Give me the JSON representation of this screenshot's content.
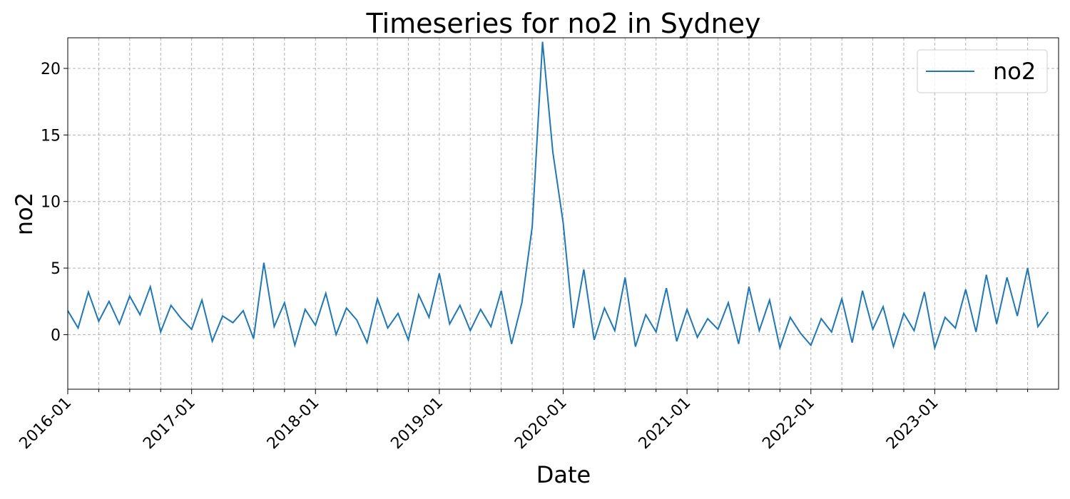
{
  "chart_data": {
    "type": "line",
    "title": "Timeseries for no2 in Sydney",
    "xlabel": "Date",
    "ylabel": "no2",
    "x": [
      "2016-01",
      "2016-02",
      "2016-03",
      "2016-04",
      "2016-05",
      "2016-06",
      "2016-07",
      "2016-08",
      "2016-09",
      "2016-10",
      "2016-11",
      "2016-12",
      "2017-01",
      "2017-02",
      "2017-03",
      "2017-04",
      "2017-05",
      "2017-06",
      "2017-07",
      "2017-08",
      "2017-09",
      "2017-10",
      "2017-11",
      "2017-12",
      "2018-01",
      "2018-02",
      "2018-03",
      "2018-04",
      "2018-05",
      "2018-06",
      "2018-07",
      "2018-08",
      "2018-09",
      "2018-10",
      "2018-11",
      "2018-12",
      "2019-01",
      "2019-02",
      "2019-03",
      "2019-04",
      "2019-05",
      "2019-06",
      "2019-07",
      "2019-08",
      "2019-09",
      "2019-10",
      "2019-11",
      "2019-12",
      "2020-01",
      "2020-02",
      "2020-03",
      "2020-04",
      "2020-05",
      "2020-06",
      "2020-07",
      "2020-08",
      "2020-09",
      "2020-10",
      "2020-11",
      "2020-12",
      "2021-01",
      "2021-02",
      "2021-03",
      "2021-04",
      "2021-05",
      "2021-06",
      "2021-07",
      "2021-08",
      "2021-09",
      "2021-10",
      "2021-11",
      "2021-12",
      "2022-01",
      "2022-02",
      "2022-03",
      "2022-04",
      "2022-05",
      "2022-06",
      "2022-07",
      "2022-08",
      "2022-09",
      "2022-10",
      "2022-11",
      "2022-12",
      "2023-01",
      "2023-02",
      "2023-03",
      "2023-04",
      "2023-05",
      "2023-06",
      "2023-07",
      "2023-08",
      "2023-09",
      "2023-10",
      "2023-11",
      "2023-12"
    ],
    "series": [
      {
        "name": "no2",
        "color": "#1f77b4",
        "values": [
          1.8,
          0.5,
          3.2,
          1.0,
          2.5,
          0.8,
          2.9,
          1.5,
          3.6,
          0.2,
          2.2,
          1.2,
          0.4,
          2.6,
          -0.5,
          1.4,
          0.9,
          1.8,
          -0.3,
          5.4,
          0.6,
          2.4,
          -0.8,
          1.9,
          0.7,
          3.1,
          0.0,
          2.0,
          1.1,
          -0.6,
          2.7,
          0.5,
          1.6,
          -0.4,
          3.0,
          1.3,
          4.6,
          0.8,
          2.2,
          0.3,
          1.9,
          0.6,
          3.3,
          -0.7,
          2.4,
          8.1,
          22.0,
          13.7,
          8.4,
          0.5,
          4.9,
          -0.4,
          2.0,
          0.3,
          4.3,
          -0.9,
          1.5,
          0.2,
          3.5,
          -0.5,
          1.9,
          -0.2,
          1.2,
          0.4,
          2.4,
          -0.7,
          3.6,
          0.3,
          2.6,
          -1.0,
          1.3,
          0.1,
          -0.8,
          1.2,
          0.2,
          2.7,
          -0.6,
          3.3,
          0.4,
          2.1,
          -0.9,
          1.6,
          0.3,
          3.2,
          -1.0,
          1.3,
          0.5,
          3.4,
          0.2,
          4.5,
          0.8,
          4.3,
          1.4,
          5.0,
          0.6,
          1.7
        ]
      }
    ],
    "xlim": [
      "2016-01",
      "2023-12"
    ],
    "xticks": [
      "2016-01",
      "2017-01",
      "2018-01",
      "2019-01",
      "2020-01",
      "2021-01",
      "2022-01",
      "2023-01"
    ],
    "xminorticks": [
      "2016-04",
      "2016-07",
      "2016-10",
      "2017-04",
      "2017-07",
      "2017-10",
      "2018-04",
      "2018-07",
      "2018-10",
      "2019-04",
      "2019-07",
      "2019-10",
      "2020-04",
      "2020-07",
      "2020-10",
      "2021-04",
      "2021-07",
      "2021-10",
      "2022-04",
      "2022-07",
      "2022-10",
      "2023-04",
      "2023-07",
      "2023-10"
    ],
    "ylim": [
      -4.1,
      22.3
    ],
    "yticks": [
      0,
      5,
      10,
      15,
      20
    ],
    "grid": true,
    "legend": "upper right"
  }
}
